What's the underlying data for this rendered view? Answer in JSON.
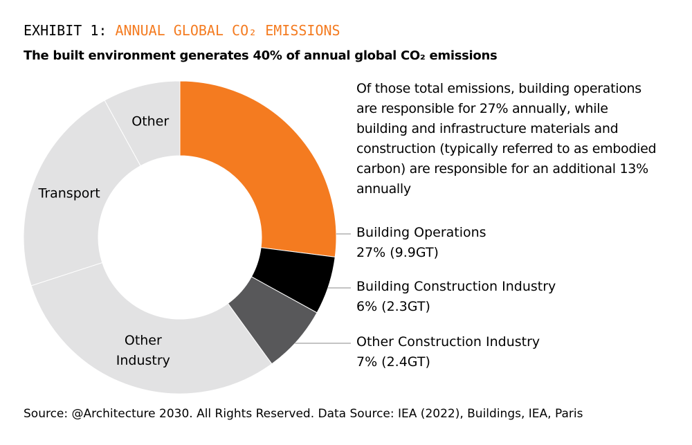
{
  "chart_data": {
    "type": "donut",
    "exhibit": "EXHIBIT 1:",
    "title": "ANNUAL GLOBAL CO₂ EMISSIONS",
    "subtitle": "The built environment generates 40% of annual global CO₂ emissions",
    "annotation": "Of those total emissions, building operations are responsible for 27% annually, while building and infrastructure materials and construction (typically referred to as embodied carbon) are responsible for an additional 13% annually",
    "categories": [
      "Building Operations",
      "Building Construction Industry",
      "Other Construction Industry",
      "Other Industry",
      "Transport",
      "Other"
    ],
    "values": [
      27,
      6,
      7,
      30,
      22,
      8
    ],
    "value_labels": [
      "27% (9.9GT)",
      "6% (2.3GT)",
      "7% (2.4GT)",
      null,
      null,
      null
    ],
    "colors": [
      "#f47b20",
      "#000000",
      "#58585a",
      "#e2e2e3",
      "#e2e2e3",
      "#e2e2e3"
    ],
    "source": "Source: @Architecture 2030. All Rights Reserved. Data Source: IEA (2022), Buildings, IEA, Paris"
  }
}
